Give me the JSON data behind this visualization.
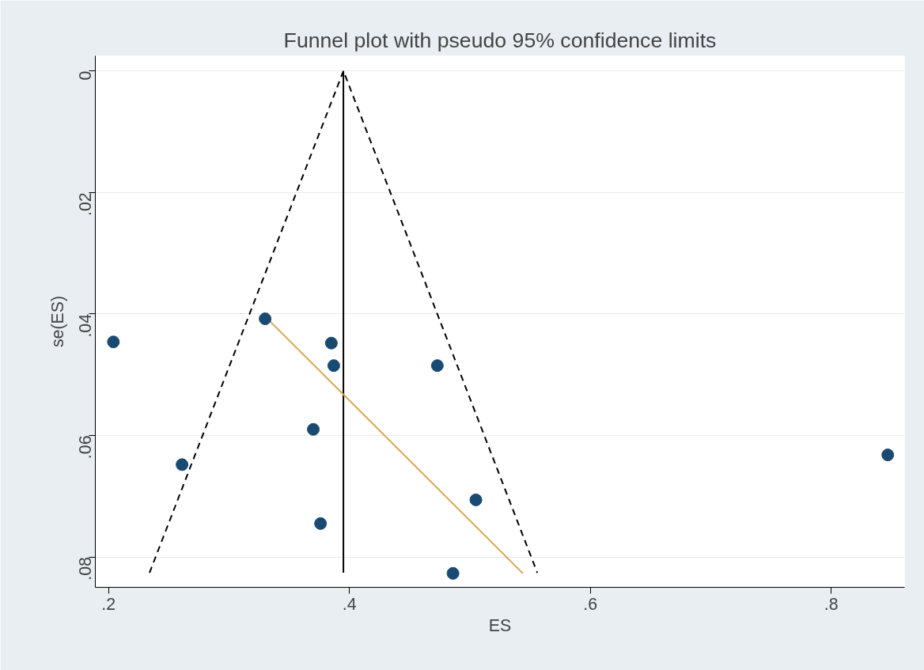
{
  "chart_data": {
    "type": "scatter",
    "title": "Funnel plot with pseudo 95% confidence limits",
    "xlabel": "ES",
    "ylabel": "se(ES)",
    "xlim": [
      0.189,
      0.861
    ],
    "ylim": [
      0.085,
      -0.0025
    ],
    "xticks": [
      {
        "value": 0.2,
        "label": ".2"
      },
      {
        "value": 0.4,
        "label": ".4"
      },
      {
        "value": 0.6,
        "label": ".6"
      },
      {
        "value": 0.8,
        "label": ".8"
      }
    ],
    "yticks": [
      0,
      {
        "value": 0.02,
        "label": ".02"
      },
      {
        "value": 0.04,
        "label": ".04"
      },
      {
        "value": 0.06,
        "label": ".06"
      },
      {
        "value": 0.08,
        "label": ".08"
      }
    ],
    "grid": "y",
    "series": [
      {
        "type": "line",
        "color": "#000000",
        "line_style": "dashed",
        "x": [
          0.234,
          0.395,
          0.556
        ],
        "values": [
          0.0826,
          0,
          0.0826
        ]
      },
      {
        "type": "line",
        "color": "#000000",
        "line_style": "solid",
        "x": [
          0.395,
          0.395
        ],
        "values": [
          0,
          0.0826
        ]
      },
      {
        "type": "line",
        "color": "#d9a54a",
        "line_style": "solid",
        "x": [
          0.334,
          0.544
        ],
        "values": [
          0.0412,
          0.0827
        ]
      },
      {
        "color": "#1a4a72",
        "marker": "circle",
        "x": [
          0.204,
          0.261,
          0.33,
          0.385,
          0.387,
          0.37,
          0.376,
          0.473,
          0.505,
          0.486,
          0.847
        ],
        "values": [
          0.0446,
          0.0648,
          0.0408,
          0.0448,
          0.0485,
          0.059,
          0.0745,
          0.0485,
          0.0706,
          0.0827,
          0.0632
        ]
      }
    ]
  }
}
